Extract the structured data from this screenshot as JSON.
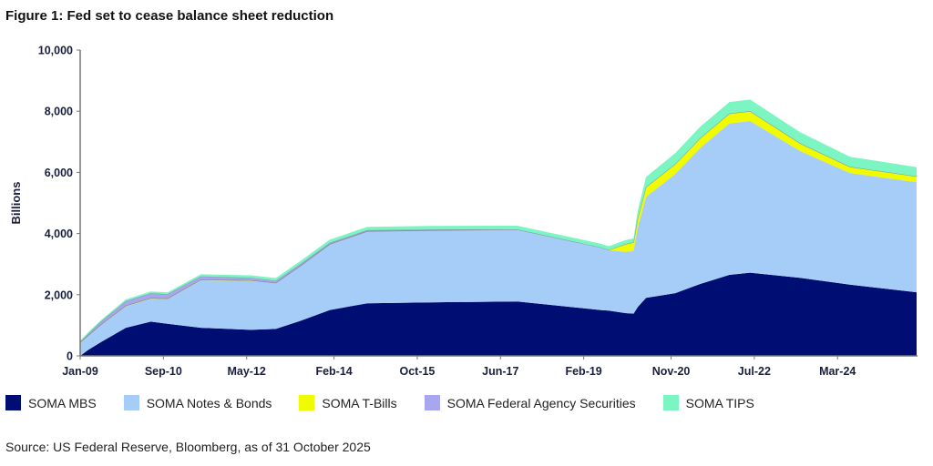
{
  "title": "Figure 1: Fed set to cease balance sheet reduction",
  "source": "Source: US Federal Reserve, Bloomberg, as of 31 October 2025",
  "chart_data": {
    "type": "area",
    "stacked": true,
    "title": "Figure 1: Fed set to cease balance sheet reduction",
    "ylabel": "Billions",
    "xlabel": "",
    "ylim": [
      0,
      10000
    ],
    "yticks": [
      "0",
      "2,000",
      "4,000",
      "6,000",
      "8,000",
      "10,000"
    ],
    "ytick_values": [
      0,
      2000,
      4000,
      6000,
      8000,
      10000
    ],
    "xlim": [
      "2009-01",
      "2025-10"
    ],
    "xticks": [
      {
        "label": "Jan-09",
        "date": "2009-01"
      },
      {
        "label": "Sep-10",
        "date": "2010-09"
      },
      {
        "label": "May-12",
        "date": "2012-05"
      },
      {
        "label": "Feb-14",
        "date": "2014-02"
      },
      {
        "label": "Oct-15",
        "date": "2015-10"
      },
      {
        "label": "Jun-17",
        "date": "2017-06"
      },
      {
        "label": "Feb-19",
        "date": "2019-02"
      },
      {
        "label": "Nov-20",
        "date": "2020-11"
      },
      {
        "label": "Jul-22",
        "date": "2022-07"
      },
      {
        "label": "Mar-24",
        "date": "2024-03"
      }
    ],
    "grid": false,
    "legend_position": "bottom",
    "x": [
      "2009-01",
      "2009-03",
      "2009-06",
      "2009-12",
      "2010-06",
      "2010-10",
      "2011-06",
      "2012-06",
      "2012-12",
      "2013-06",
      "2014-01",
      "2014-10",
      "2016-01",
      "2017-10",
      "2019-06",
      "2019-08",
      "2019-12",
      "2020-02",
      "2020-03",
      "2020-05",
      "2020-12",
      "2021-06",
      "2022-01",
      "2022-06",
      "2023-06",
      "2024-06",
      "2025-10"
    ],
    "series": [
      {
        "name": "SOMA MBS",
        "color": "#000e73",
        "values": [
          0,
          200,
          450,
          920,
          1120,
          1050,
          920,
          850,
          880,
          1150,
          1500,
          1720,
          1750,
          1780,
          1500,
          1480,
          1400,
          1380,
          1600,
          1900,
          2050,
          2350,
          2650,
          2720,
          2550,
          2330,
          2080
        ]
      },
      {
        "name": "SOMA Notes & Bonds",
        "color": "#a6cdf7",
        "values": [
          420,
          450,
          550,
          700,
          750,
          800,
          1550,
          1600,
          1500,
          1800,
          2150,
          2350,
          2350,
          2350,
          2050,
          1980,
          2000,
          2050,
          2600,
          3300,
          3900,
          4450,
          4950,
          4960,
          4150,
          3650,
          3600
        ]
      },
      {
        "name": "SOMA T-Bills",
        "color": "#f0fa00",
        "values": [
          18,
          18,
          18,
          18,
          18,
          18,
          18,
          18,
          0,
          0,
          0,
          0,
          0,
          0,
          0,
          0,
          250,
          280,
          300,
          320,
          320,
          320,
          320,
          320,
          250,
          200,
          190
        ]
      },
      {
        "name": "SOMA Federal Agency Securities",
        "color": "#a9a6f0",
        "values": [
          20,
          60,
          100,
          150,
          160,
          150,
          110,
          85,
          75,
          60,
          50,
          40,
          30,
          5,
          2,
          2,
          2,
          2,
          2,
          2,
          2,
          2,
          2,
          2,
          2,
          2,
          2
        ]
      },
      {
        "name": "SOMA TIPS",
        "color": "#7bf5c2",
        "values": [
          40,
          50,
          50,
          60,
          60,
          60,
          70,
          80,
          90,
          100,
          100,
          110,
          120,
          120,
          120,
          120,
          130,
          130,
          250,
          330,
          360,
          370,
          380,
          380,
          360,
          330,
          300
        ]
      }
    ]
  }
}
